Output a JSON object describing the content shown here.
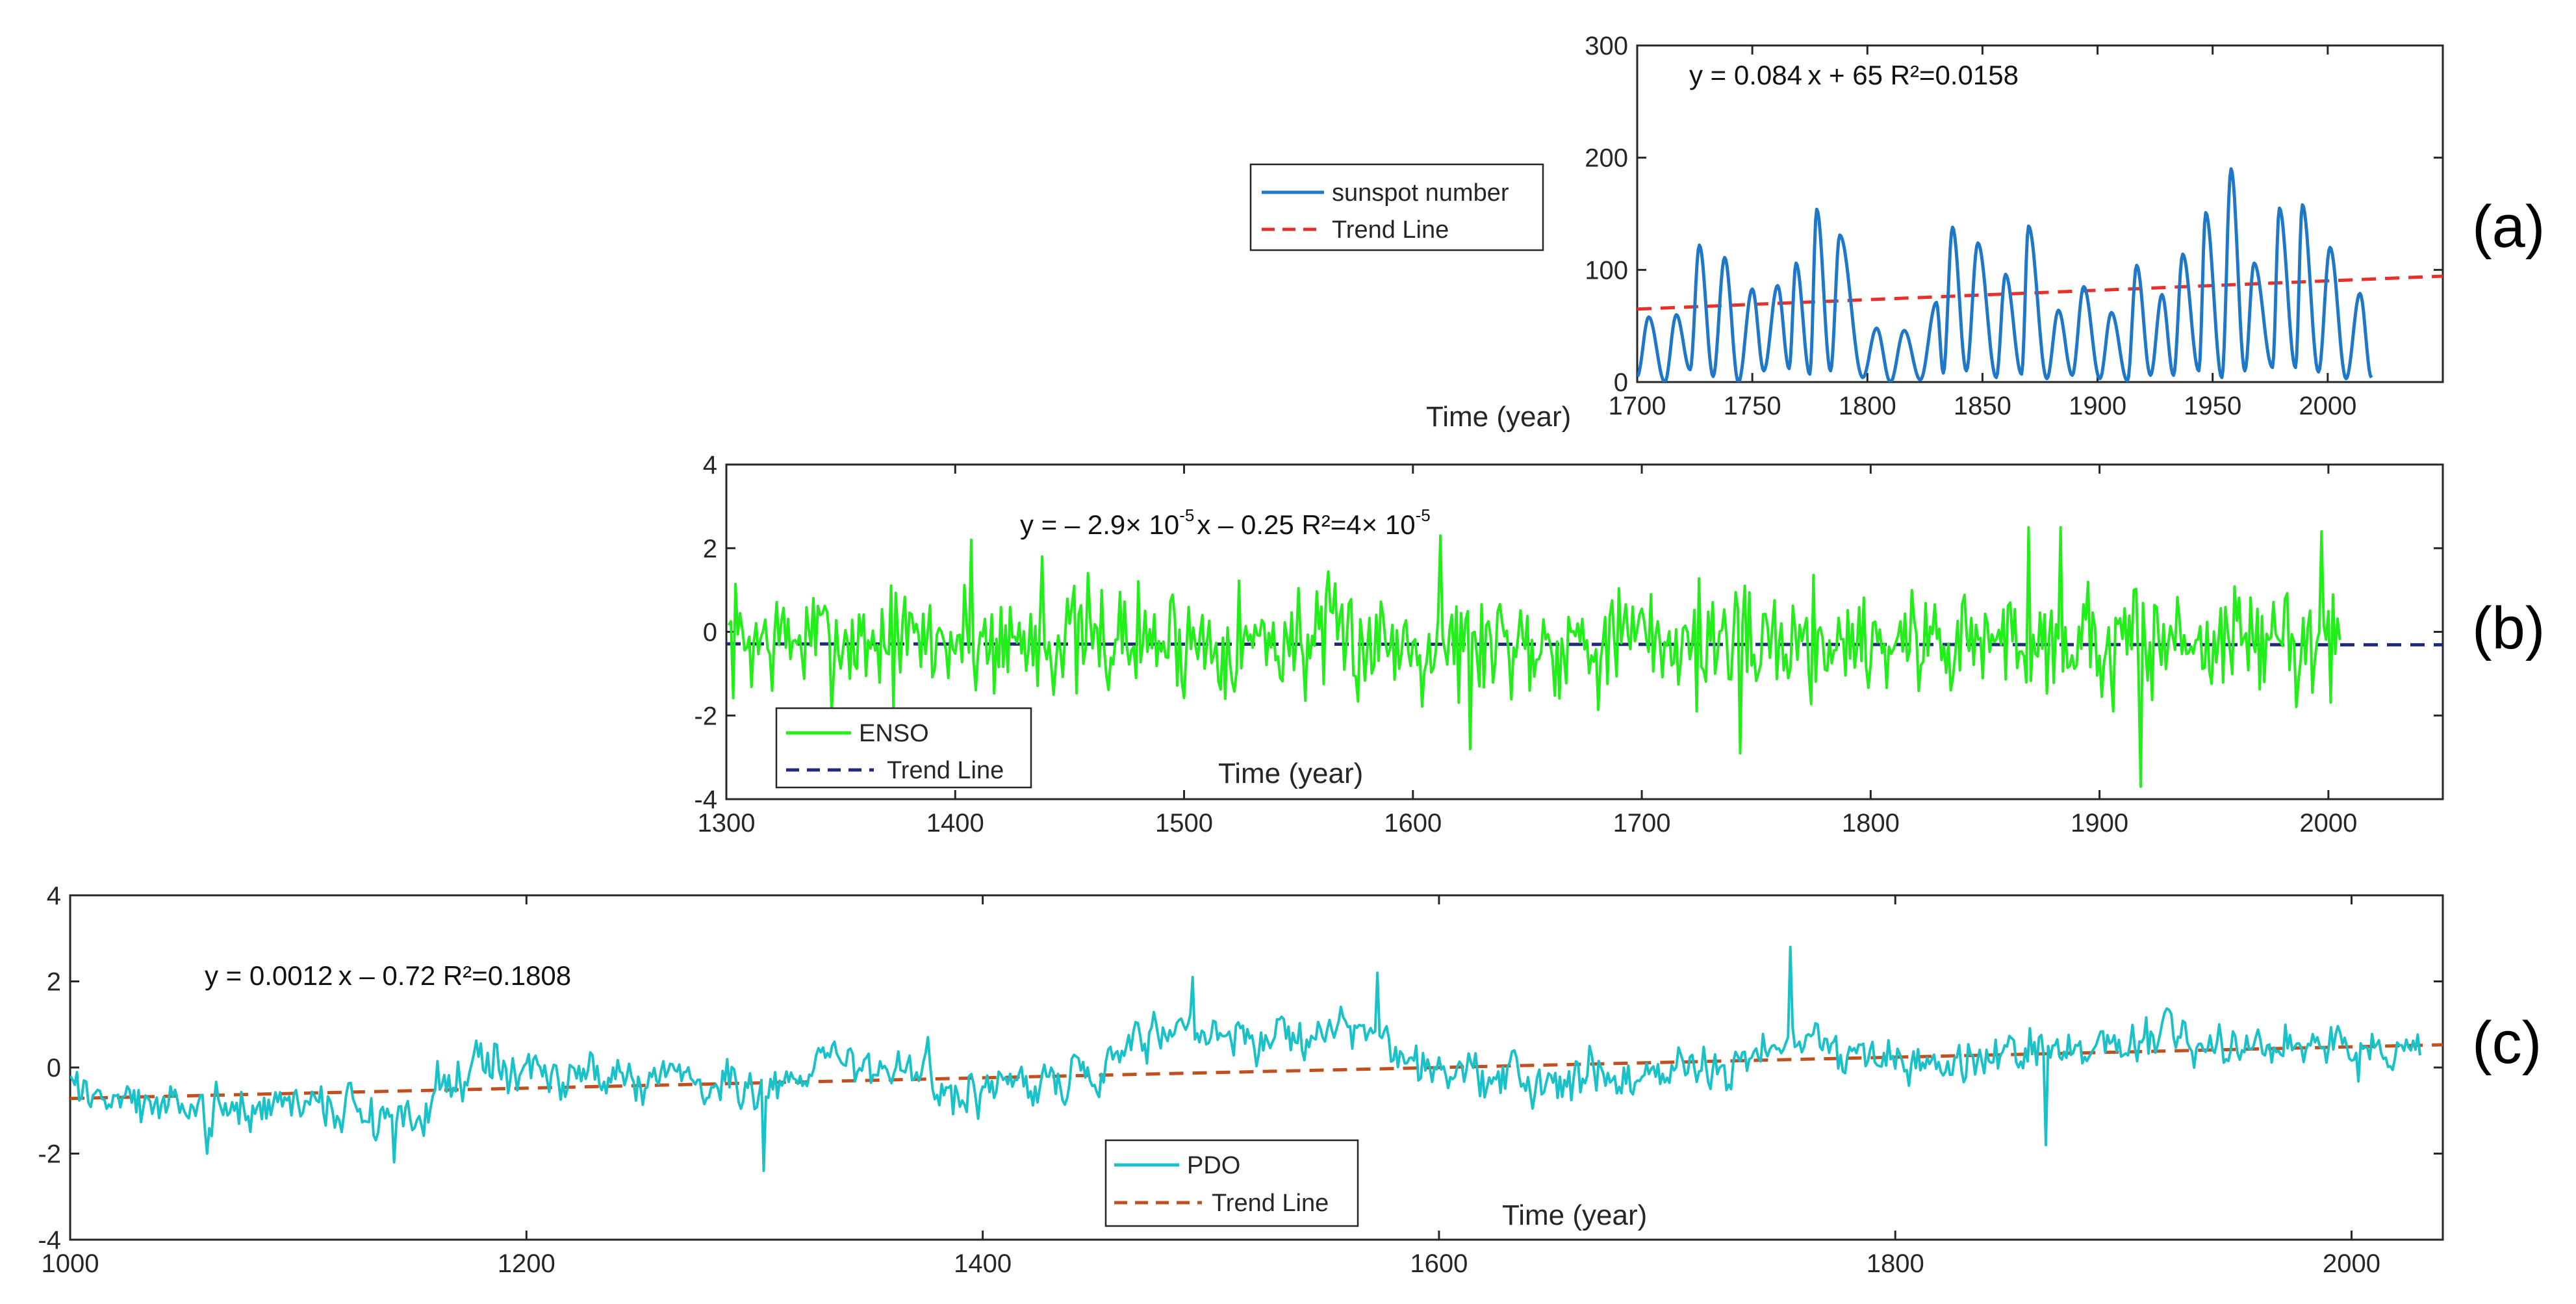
{
  "chart_data": [
    {
      "type": "line",
      "panel_label": "(a)",
      "xlabel": "Time (year)",
      "ylabel": "",
      "xlim": [
        1700,
        2050
      ],
      "ylim": [
        0,
        300
      ],
      "xticks": [
        "1700",
        "1750",
        "1800",
        "1850",
        "1900",
        "1950",
        "2000"
      ],
      "yticks": [
        "0",
        "100",
        "200",
        "300"
      ],
      "equation": {
        "main": "y = 0.084 x  + 65  R²=0.0158",
        "x2": "",
        "sup2": ""
      },
      "legend": [
        "sunspot number",
        "Trend Line"
      ],
      "legend_location": "upper-left outside",
      "colors": {
        "series": "#1f77c8",
        "trend": "#e8302a"
      },
      "trend": {
        "slope": 0.084,
        "intercept": 65,
        "x0": 1700,
        "r2": 0.0158
      },
      "series": [
        {
          "name": "sunspot number",
          "x_start": 1700,
          "x_step": 1,
          "peaks": [
            [
              1705,
              58
            ],
            [
              1717,
              60
            ],
            [
              1727,
              122
            ],
            [
              1738,
              111
            ],
            [
              1750,
              83
            ],
            [
              1761,
              86
            ],
            [
              1769,
              106
            ],
            [
              1778,
              154
            ],
            [
              1788,
              131
            ],
            [
              1804,
              48
            ],
            [
              1816,
              46
            ],
            [
              1830,
              71
            ],
            [
              1837,
              138
            ],
            [
              1848,
              124
            ],
            [
              1860,
              96
            ],
            [
              1870,
              139
            ],
            [
              1883,
              64
            ],
            [
              1894,
              85
            ],
            [
              1906,
              62
            ],
            [
              1917,
              104
            ],
            [
              1928,
              78
            ],
            [
              1937,
              114
            ],
            [
              1947,
              151
            ],
            [
              1958,
              190
            ],
            [
              1968,
              106
            ],
            [
              1979,
              155
            ],
            [
              1989,
              158
            ],
            [
              2001,
              120
            ],
            [
              2014,
              79
            ]
          ],
          "minima": [
            [
              1700,
              5
            ],
            [
              1712,
              0
            ],
            [
              1723,
              11
            ],
            [
              1733,
              5
            ],
            [
              1744,
              0
            ],
            [
              1755,
              10
            ],
            [
              1766,
              12
            ],
            [
              1775,
              7
            ],
            [
              1784,
              10
            ],
            [
              1798,
              4
            ],
            [
              1810,
              0
            ],
            [
              1823,
              2
            ],
            [
              1833,
              8
            ],
            [
              1843,
              10
            ],
            [
              1856,
              4
            ],
            [
              1867,
              7
            ],
            [
              1878,
              3
            ],
            [
              1889,
              6
            ],
            [
              1901,
              3
            ],
            [
              1913,
              1
            ],
            [
              1923,
              6
            ],
            [
              1933,
              6
            ],
            [
              1944,
              10
            ],
            [
              1954,
              4
            ],
            [
              1964,
              10
            ],
            [
              1976,
              13
            ],
            [
              1986,
              13
            ],
            [
              1996,
              9
            ],
            [
              2008,
              3
            ],
            [
              2019,
              4
            ]
          ]
        }
      ]
    },
    {
      "type": "line",
      "panel_label": "(b)",
      "xlabel": "Time (year)",
      "ylabel": "",
      "xlim": [
        1300,
        2050
      ],
      "ylim": [
        -4,
        4
      ],
      "xticks": [
        "1300",
        "1400",
        "1500",
        "1600",
        "1700",
        "1800",
        "1900",
        "2000"
      ],
      "yticks": [
        "-4",
        "-2",
        "0",
        "2",
        "4"
      ],
      "equation": {
        "main": "y = – 2.9× 10",
        "sup1": "-5",
        "mid": "x – 0.25   R²=4× 10",
        "sup2": "-5"
      },
      "legend": [
        "ENSO",
        "Trend Line"
      ],
      "legend_location": "lower-left",
      "colors": {
        "series": "#22ee1a",
        "trend": "#1f2a7a"
      },
      "trend": {
        "slope": -2.9e-05,
        "intercept": -0.25,
        "x0": 0,
        "r2": 4e-05
      },
      "series": [
        {
          "name": "ENSO",
          "x_start": 1301,
          "x_step": 1,
          "x_end": 2005,
          "noise_amplitude": 0.85,
          "seed": 7,
          "extremes": [
            [
              1407,
              2.2
            ],
            [
              1438,
              1.8
            ],
            [
              1612,
              2.3
            ],
            [
              1625,
              -2.8
            ],
            [
              1743,
              -2.9
            ],
            [
              1869,
              2.5
            ],
            [
              1883,
              2.5
            ],
            [
              1918,
              -3.7
            ],
            [
              1997,
              2.4
            ],
            [
              1906,
              -1.9
            ]
          ]
        }
      ]
    },
    {
      "type": "line",
      "panel_label": "(c)",
      "xlabel": "Time (year)",
      "ylabel": "",
      "xlim": [
        1000,
        2040
      ],
      "ylim": [
        -4,
        4
      ],
      "xticks": [
        "1000",
        "1200",
        "1400",
        "1600",
        "1800",
        "2000"
      ],
      "yticks": [
        "-4",
        "-2",
        "0",
        "2",
        "4"
      ],
      "equation": {
        "main": "y = 0.0012 x  – 0.72  R²=0.1808",
        "x2": "",
        "sup2": ""
      },
      "legend": [
        "PDO",
        "Trend Line"
      ],
      "legend_location": "lower-center",
      "colors": {
        "series": "#19c2c9",
        "trend": "#c0501f"
      },
      "trend": {
        "slope": 0.0012,
        "intercept": -0.72,
        "x0": 1000,
        "r2": 0.1808
      },
      "series": [
        {
          "name": "PDO",
          "x_start": 1000,
          "x_step": 1,
          "x_end": 2030,
          "noise_amplitude": 0.6,
          "seed": 3,
          "anchors": [
            [
              1000,
              -0.4
            ],
            [
              1050,
              -1.1
            ],
            [
              1100,
              -0.7
            ],
            [
              1140,
              -1.2
            ],
            [
              1180,
              0.1
            ],
            [
              1220,
              -0.2
            ],
            [
              1260,
              -0.1
            ],
            [
              1300,
              -0.6
            ],
            [
              1340,
              0.4
            ],
            [
              1380,
              -0.3
            ],
            [
              1420,
              -0.6
            ],
            [
              1450,
              0.1
            ],
            [
              1480,
              1.1
            ],
            [
              1520,
              0.4
            ],
            [
              1560,
              1.2
            ],
            [
              1590,
              0.0
            ],
            [
              1640,
              -0.3
            ],
            [
              1680,
              -0.1
            ],
            [
              1720,
              0.1
            ],
            [
              1760,
              0.6
            ],
            [
              1800,
              0.2
            ],
            [
              1840,
              0.2
            ],
            [
              1880,
              0.3
            ],
            [
              1920,
              0.9
            ],
            [
              1960,
              0.2
            ],
            [
              2000,
              0.4
            ],
            [
              2030,
              0.5
            ]
          ],
          "extremes": [
            [
              1304,
              -2.4
            ],
            [
              1492,
              2.1
            ],
            [
              1573,
              2.2
            ],
            [
              1754,
              2.8
            ],
            [
              1866,
              -1.8
            ],
            [
              1142,
              -2.2
            ],
            [
              1060,
              -2.0
            ]
          ]
        }
      ]
    }
  ]
}
